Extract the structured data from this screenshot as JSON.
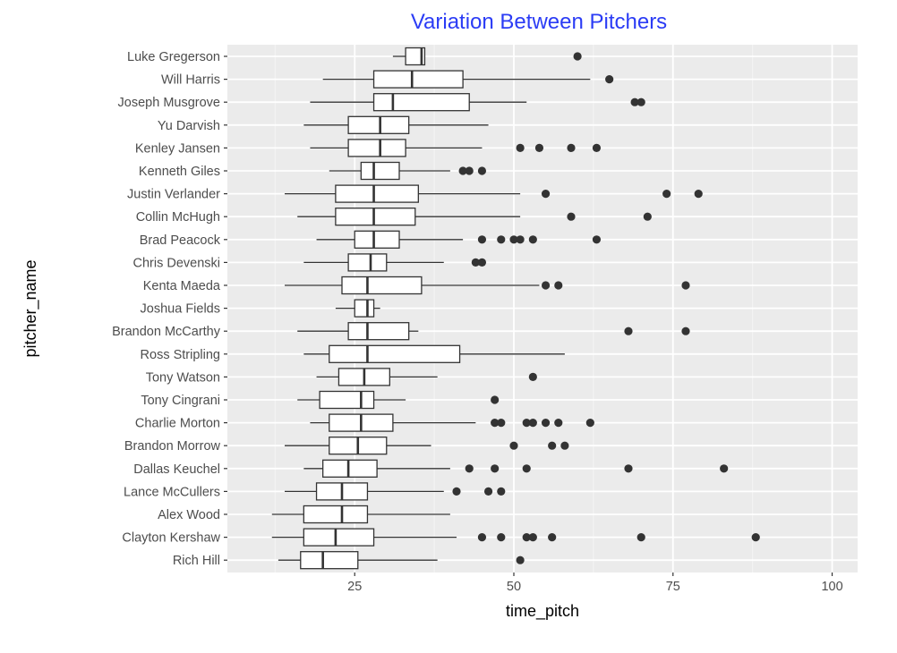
{
  "chart_data": {
    "type": "boxplot",
    "orientation": "horizontal",
    "title": "Variation Between Pitchers",
    "xlabel": "time_pitch",
    "ylabel": "pitcher_name",
    "xlim": [
      5,
      104
    ],
    "xticks": [
      25,
      50,
      75,
      100
    ],
    "grid": true,
    "title_color": "#2b3cf5",
    "panel_color": "#ebebeb",
    "pitchers": [
      {
        "name": "Luke Gregerson",
        "whisker_low": 31,
        "q1": 33,
        "median": 35.5,
        "q3": 36,
        "whisker_high": 36,
        "outliers": [
          60
        ]
      },
      {
        "name": "Will Harris",
        "whisker_low": 20,
        "q1": 28,
        "median": 34,
        "q3": 42,
        "whisker_high": 62,
        "outliers": [
          65
        ]
      },
      {
        "name": "Joseph Musgrove",
        "whisker_low": 18,
        "q1": 28,
        "median": 31,
        "q3": 43,
        "whisker_high": 52,
        "outliers": [
          69,
          70
        ]
      },
      {
        "name": "Yu Darvish",
        "whisker_low": 17,
        "q1": 24,
        "median": 29,
        "q3": 33.5,
        "whisker_high": 46,
        "outliers": []
      },
      {
        "name": "Kenley Jansen",
        "whisker_low": 18,
        "q1": 24,
        "median": 29,
        "q3": 33,
        "whisker_high": 45,
        "outliers": [
          51,
          54,
          59,
          63
        ]
      },
      {
        "name": "Kenneth Giles",
        "whisker_low": 21,
        "q1": 26,
        "median": 28,
        "q3": 32,
        "whisker_high": 40,
        "outliers": [
          42,
          43,
          45
        ]
      },
      {
        "name": "Justin Verlander",
        "whisker_low": 14,
        "q1": 22,
        "median": 28,
        "q3": 35,
        "whisker_high": 51,
        "outliers": [
          55,
          74,
          79
        ]
      },
      {
        "name": "Collin McHugh",
        "whisker_low": 16,
        "q1": 22,
        "median": 28,
        "q3": 34.5,
        "whisker_high": 51,
        "outliers": [
          59,
          71
        ]
      },
      {
        "name": "Brad Peacock",
        "whisker_low": 19,
        "q1": 25,
        "median": 28,
        "q3": 32,
        "whisker_high": 42,
        "outliers": [
          45,
          48,
          50,
          51,
          53,
          63
        ]
      },
      {
        "name": "Chris Devenski",
        "whisker_low": 17,
        "q1": 24,
        "median": 27.5,
        "q3": 30,
        "whisker_high": 39,
        "outliers": [
          44,
          45
        ]
      },
      {
        "name": "Kenta Maeda",
        "whisker_low": 14,
        "q1": 23,
        "median": 27,
        "q3": 35.5,
        "whisker_high": 54,
        "outliers": [
          55,
          57,
          77
        ]
      },
      {
        "name": "Joshua Fields",
        "whisker_low": 22,
        "q1": 25,
        "median": 27,
        "q3": 28,
        "whisker_high": 29,
        "outliers": []
      },
      {
        "name": "Brandon McCarthy",
        "whisker_low": 16,
        "q1": 24,
        "median": 27,
        "q3": 33.5,
        "whisker_high": 35,
        "outliers": [
          68,
          77
        ]
      },
      {
        "name": "Ross Stripling",
        "whisker_low": 17,
        "q1": 21,
        "median": 27,
        "q3": 41.5,
        "whisker_high": 58,
        "outliers": []
      },
      {
        "name": "Tony Watson",
        "whisker_low": 19,
        "q1": 22.5,
        "median": 26.5,
        "q3": 30.5,
        "whisker_high": 38,
        "outliers": [
          53
        ]
      },
      {
        "name": "Tony Cingrani",
        "whisker_low": 16,
        "q1": 19.5,
        "median": 26,
        "q3": 28,
        "whisker_high": 33,
        "outliers": [
          47
        ]
      },
      {
        "name": "Charlie Morton",
        "whisker_low": 18,
        "q1": 21,
        "median": 26,
        "q3": 31,
        "whisker_high": 44,
        "outliers": [
          47,
          48,
          52,
          53,
          55,
          57,
          62
        ]
      },
      {
        "name": "Brandon Morrow",
        "whisker_low": 14,
        "q1": 21,
        "median": 25.5,
        "q3": 30,
        "whisker_high": 37,
        "outliers": [
          50,
          56,
          58
        ]
      },
      {
        "name": "Dallas Keuchel",
        "whisker_low": 17,
        "q1": 20,
        "median": 24,
        "q3": 28.5,
        "whisker_high": 40,
        "outliers": [
          43,
          47,
          52,
          68,
          83
        ]
      },
      {
        "name": "Lance McCullers",
        "whisker_low": 14,
        "q1": 19,
        "median": 23,
        "q3": 27,
        "whisker_high": 39,
        "outliers": [
          41,
          46,
          48
        ]
      },
      {
        "name": "Alex Wood",
        "whisker_low": 12,
        "q1": 17,
        "median": 23,
        "q3": 27,
        "whisker_high": 40,
        "outliers": []
      },
      {
        "name": "Clayton Kershaw",
        "whisker_low": 12,
        "q1": 17,
        "median": 22,
        "q3": 28,
        "whisker_high": 41,
        "outliers": [
          45,
          48,
          52,
          53,
          56,
          70,
          88
        ]
      },
      {
        "name": "Rich Hill",
        "whisker_low": 13,
        "q1": 16.5,
        "median": 20,
        "q3": 25.5,
        "whisker_high": 38,
        "outliers": [
          51
        ]
      }
    ]
  }
}
